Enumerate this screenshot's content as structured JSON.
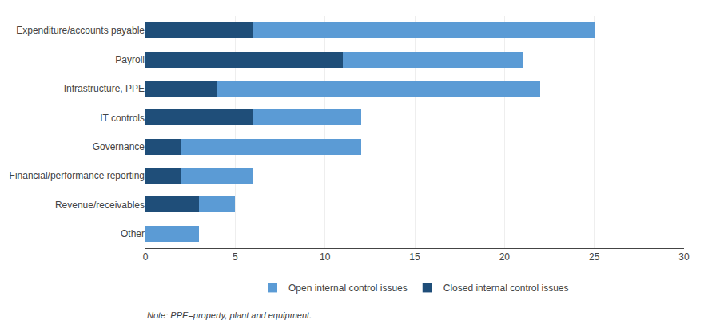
{
  "chart_data": {
    "type": "bar",
    "orientation": "horizontal",
    "stacked": true,
    "categories": [
      "Expenditure/accounts payable",
      "Payroll",
      "Infrastructure, PPE",
      "IT controls",
      "Governance",
      "Financial/performance reporting",
      "Revenue/receivables",
      "Other"
    ],
    "series": [
      {
        "name": "Closed internal control issues",
        "color": "#1F4E79",
        "values": [
          6,
          11,
          4,
          6,
          2,
          2,
          3,
          0
        ]
      },
      {
        "name": "Open internal control issues",
        "color": "#5B9BD5",
        "values": [
          19,
          10,
          18,
          6,
          10,
          4,
          2,
          3
        ]
      }
    ],
    "xlim": [
      0,
      30
    ],
    "xticks": [
      0,
      5,
      10,
      15,
      20,
      25,
      30
    ],
    "grid": true,
    "legend": "bottom",
    "annotations": [
      "Note: PPE=property, plant and equipment."
    ]
  }
}
